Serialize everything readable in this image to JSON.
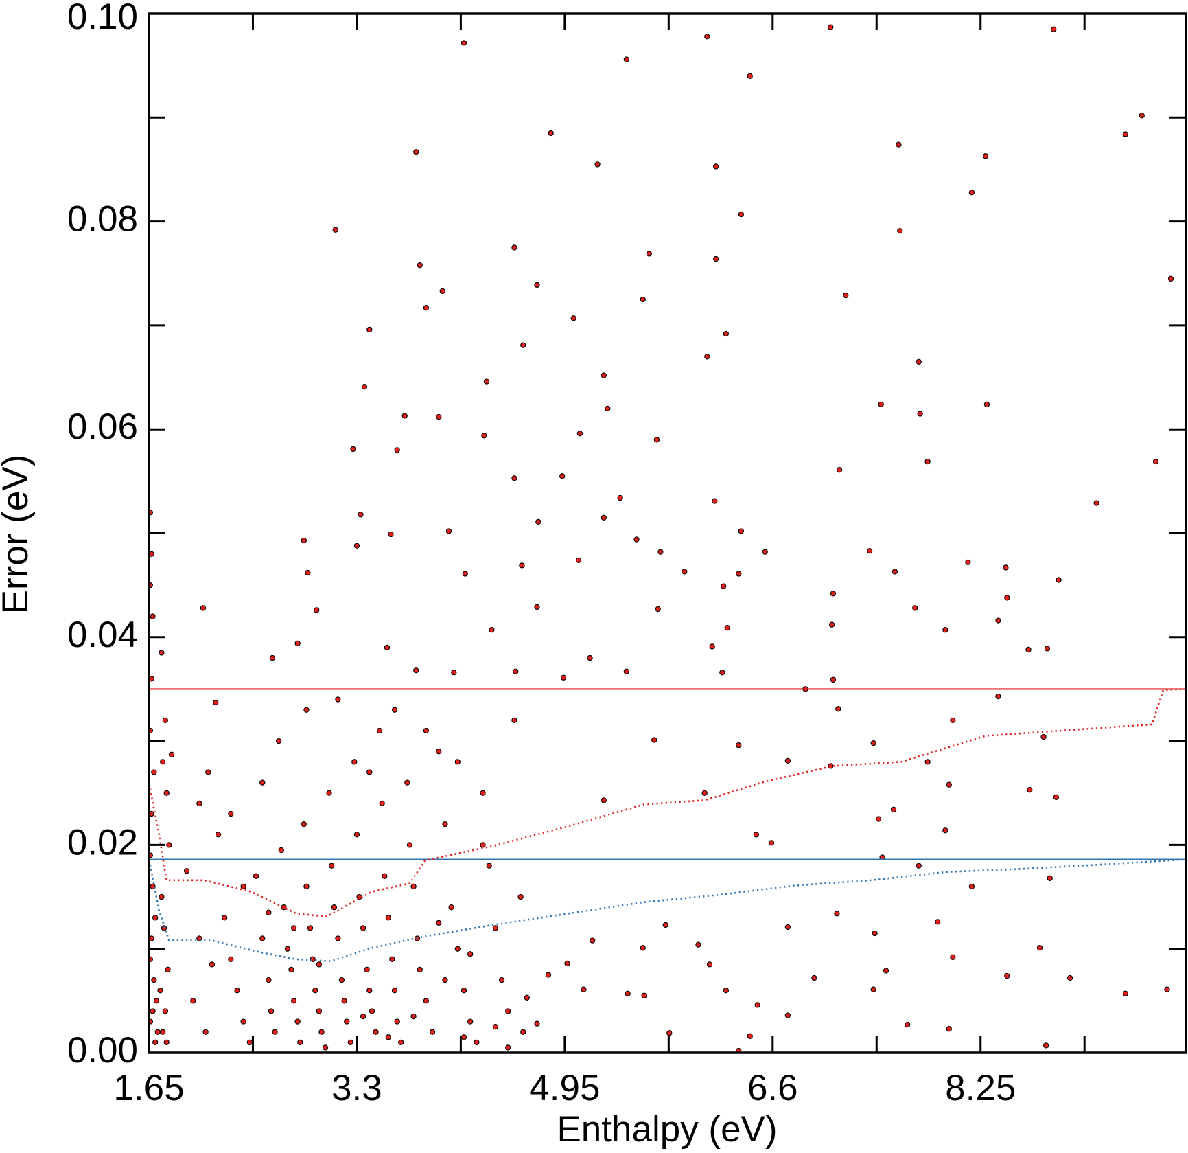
{
  "chart_data": {
    "type": "scatter",
    "xlabel": "Enthalpy (eV)",
    "ylabel": "Error (eV)",
    "xlim": [
      1.65,
      9.88
    ],
    "ylim": [
      0,
      0.1
    ],
    "xticks": [
      1.65,
      3.3,
      4.95,
      6.6,
      8.25
    ],
    "xminorticks": [
      2.475,
      4.125,
      5.775,
      7.425,
      9.075
    ],
    "yticks": [
      {
        "value": 0,
        "label": "0.00"
      },
      {
        "value": 0.02,
        "label": "0.02"
      },
      {
        "value": 0.04,
        "label": "0.04"
      },
      {
        "value": 0.06,
        "label": "0.06"
      },
      {
        "value": 0.08,
        "label": "0.08"
      },
      {
        "value": 0.1,
        "label": "0.10"
      }
    ],
    "yminorticks": [
      0.01,
      0.03,
      0.05,
      0.07,
      0.09
    ],
    "grid": false,
    "series": [
      {
        "type": "scatter",
        "color": "#e0201b",
        "x": [
          4.15,
          6.08,
          7.06,
          8.83,
          5.44,
          6.42,
          9.53,
          9.4,
          4.84,
          3.77,
          7.6,
          8.29,
          5.21,
          6.15,
          8.18,
          6.35,
          3.13,
          7.61,
          4.55,
          5.62,
          6.15,
          3.8,
          9.76,
          4.73,
          7.18,
          3.98,
          5.57,
          3.85,
          5.02,
          3.4,
          6.23,
          4.62,
          6.08,
          7.76,
          4.33,
          3.36,
          5.26,
          7.46,
          8.3,
          5.29,
          3.95,
          3.68,
          5.07,
          4.31,
          5.68,
          7.77,
          7.83,
          9.64,
          3.27,
          3.62,
          4.93,
          4.55,
          7.13,
          5.39,
          6.14,
          9.17,
          3.33,
          5.26,
          4.74,
          6.35,
          4.03,
          3.57,
          2.88,
          5.52,
          7.37,
          5.71,
          6.54,
          3.3,
          5.06,
          8.15,
          8.45,
          4.61,
          2.91,
          5.9,
          7.57,
          6.33,
          8.87,
          4.16,
          6.21,
          2.08,
          7.08,
          8.46,
          2.98,
          4.73,
          5.69,
          7.73,
          8.39,
          7.07,
          4.37,
          6.24,
          7.97,
          1.75,
          2.83,
          3.54,
          8.63,
          8.78,
          5.15,
          6.12,
          2.63,
          4.56,
          7.08,
          5.44,
          4.07,
          3.77,
          4.94,
          6.2,
          6.86,
          7.12,
          8.39,
          2.18,
          7.4,
          8.03,
          6.33,
          8.75,
          1.83,
          5.66,
          6.72,
          7.83,
          7.06,
          8.64,
          8.85,
          8.0,
          6.06,
          5.26,
          7.56,
          7.44,
          7.97,
          6.47,
          6.59,
          7.76,
          7.47,
          8.18,
          8.8,
          7.11,
          7.91,
          6.72,
          7.41,
          8.72,
          8.03,
          7.5,
          8.46,
          8.96,
          7.4,
          9.4,
          9.73,
          6.93,
          6.23,
          6.48,
          6.72,
          7.67,
          8.0,
          8.77,
          5.78,
          5.58,
          5.45,
          6.01,
          6.1,
          5.57,
          5.75,
          5.17,
          4.97,
          5.1,
          4.82,
          4.65,
          4.73,
          6.33,
          6.42,
          1.66,
          1.67,
          1.66,
          1.68,
          1.67,
          1.66,
          1.69,
          1.67,
          1.66,
          1.68,
          1.7,
          1.67,
          1.66,
          1.69,
          1.71,
          1.68,
          1.66,
          1.72,
          1.7,
          1.78,
          1.76,
          1.79,
          1.81,
          1.75,
          1.77,
          1.8,
          1.74,
          1.78,
          1.76,
          1.79,
          2.05,
          2.12,
          2.2,
          2.25,
          2.3,
          2.35,
          2.4,
          2.45,
          2.5,
          2.55,
          2.6,
          2.62,
          2.65,
          2.7,
          2.72,
          2.75,
          2.78,
          2.8,
          2.83,
          2.85,
          2.88,
          2.9,
          2.93,
          2.95,
          2.97,
          3.0,
          3.02,
          3.05,
          3.08,
          3.1,
          3.12,
          3.15,
          3.18,
          3.2,
          3.22,
          3.25,
          3.28,
          3.3,
          3.32,
          3.35,
          3.38,
          3.4,
          3.42,
          3.45,
          3.48,
          3.5,
          3.52,
          3.55,
          3.58,
          3.6,
          3.62,
          3.65,
          3.7,
          3.72,
          3.75,
          3.78,
          3.8,
          3.85,
          3.9,
          3.95,
          4.0,
          4.05,
          4.1,
          4.15,
          4.2,
          4.25,
          4.3,
          4.35,
          4.4,
          4.45,
          4.5,
          4.55,
          4.6,
          4.62,
          2.0,
          2.1,
          2.15,
          2.4,
          2.55,
          2.68,
          2.9,
          3.15,
          3.4,
          3.6,
          3.85,
          4.1,
          4.3,
          1.95,
          2.05,
          2.3,
          2.6,
          2.8,
          3.0,
          3.35,
          3.55,
          3.75,
          4.0,
          4.15,
          4.4,
          4.5,
          4.2,
          3.95
        ],
        "values": [
          0.0972,
          0.0978,
          0.0987,
          0.0985,
          0.0956,
          0.094,
          0.0902,
          0.0884,
          0.0885,
          0.0867,
          0.0874,
          0.0863,
          0.0855,
          0.0853,
          0.0828,
          0.0807,
          0.0792,
          0.0791,
          0.0775,
          0.0769,
          0.0764,
          0.0758,
          0.0745,
          0.0739,
          0.0729,
          0.0733,
          0.0725,
          0.0717,
          0.0707,
          0.0696,
          0.0692,
          0.0681,
          0.067,
          0.0665,
          0.0646,
          0.0641,
          0.0652,
          0.0624,
          0.0624,
          0.062,
          0.0612,
          0.0613,
          0.0596,
          0.0594,
          0.059,
          0.0615,
          0.0569,
          0.0569,
          0.0581,
          0.058,
          0.0555,
          0.0553,
          0.0561,
          0.0534,
          0.0531,
          0.0529,
          0.0518,
          0.0515,
          0.0511,
          0.0502,
          0.0502,
          0.0499,
          0.0493,
          0.0494,
          0.0483,
          0.0482,
          0.0482,
          0.0488,
          0.0474,
          0.0472,
          0.0467,
          0.0469,
          0.0462,
          0.0463,
          0.0463,
          0.0461,
          0.0455,
          0.0461,
          0.0449,
          0.0428,
          0.0442,
          0.0438,
          0.0426,
          0.0429,
          0.0427,
          0.0428,
          0.0416,
          0.0412,
          0.0407,
          0.0409,
          0.0407,
          0.0385,
          0.0394,
          0.039,
          0.0388,
          0.0389,
          0.038,
          0.0391,
          0.038,
          0.0367,
          0.0359,
          0.0367,
          0.0366,
          0.0368,
          0.0361,
          0.0366,
          0.035,
          0.0331,
          0.0343,
          0.0337,
          0.0298,
          0.032,
          0.0296,
          0.0304,
          0.0287,
          0.0301,
          0.0281,
          0.028,
          0.0276,
          0.0253,
          0.0246,
          0.0258,
          0.025,
          0.0243,
          0.0234,
          0.0225,
          0.0214,
          0.021,
          0.0202,
          0.018,
          0.0188,
          0.016,
          0.0168,
          0.0134,
          0.0126,
          0.0121,
          0.0115,
          0.0101,
          0.0092,
          0.0079,
          0.0074,
          0.0072,
          0.0061,
          0.0057,
          0.0061,
          0.0072,
          0.006,
          0.0046,
          0.0036,
          0.0027,
          0.0023,
          0.0007,
          0.0019,
          0.0055,
          0.0057,
          0.0104,
          0.0085,
          0.0101,
          0.0123,
          0.0108,
          0.0086,
          0.0061,
          0.0075,
          0.0053,
          0.0028,
          0.0002,
          0.0016,
          0.052,
          0.048,
          0.045,
          0.042,
          0.036,
          0.031,
          0.027,
          0.023,
          0.019,
          0.016,
          0.013,
          0.011,
          0.009,
          0.007,
          0.005,
          0.004,
          0.003,
          0.002,
          0.001,
          0.032,
          0.028,
          0.025,
          0.02,
          0.015,
          0.012,
          0.008,
          0.006,
          0.004,
          0.002,
          0.001,
          0.024,
          0.027,
          0.021,
          0.013,
          0.009,
          0.006,
          0.003,
          0.001,
          0.017,
          0.011,
          0.007,
          0.004,
          0.002,
          0.0195,
          0.014,
          0.01,
          0.008,
          0.005,
          0.003,
          0.001,
          0.022,
          0.016,
          0.012,
          0.009,
          0.006,
          0.004,
          0.002,
          0.0005,
          0.025,
          0.018,
          0.014,
          0.011,
          0.007,
          0.005,
          0.003,
          0.001,
          0.028,
          0.021,
          0.015,
          0.012,
          0.008,
          0.006,
          0.004,
          0.002,
          0.031,
          0.024,
          0.017,
          0.013,
          0.009,
          0.006,
          0.003,
          0.001,
          0.026,
          0.02,
          0.016,
          0.011,
          0.008,
          0.005,
          0.002,
          0.029,
          0.022,
          0.014,
          0.01,
          0.006,
          0.003,
          0.001,
          0.025,
          0.018,
          0.012,
          0.007,
          0.004,
          0.032,
          0.015,
          0.002,
          0.005,
          0.002,
          0.0085,
          0.016,
          0.026,
          0.03,
          0.033,
          0.034,
          0.027,
          0.033,
          0.031,
          0.028,
          0.02,
          0.0175,
          0.011,
          0.023,
          0.0135,
          0.012,
          0.0085,
          0.0035,
          0.0015,
          0.0035,
          0.007,
          0.0015,
          0.0025,
          0.0005,
          0.0095,
          0.0125
        ]
      },
      {
        "type": "line",
        "style": "solid",
        "color": "#e0201b",
        "x": [
          1.65,
          9.88
        ],
        "values": [
          0.035,
          0.035
        ]
      },
      {
        "type": "line",
        "style": "solid",
        "color": "#2e75b6",
        "x": [
          1.65,
          9.88
        ],
        "values": [
          0.0186,
          0.0186
        ]
      },
      {
        "type": "line",
        "style": "dotted",
        "color": "#e0201b",
        "x": [
          1.66,
          1.73,
          1.79,
          2.09,
          2.46,
          2.82,
          3.06,
          3.42,
          3.72,
          3.84,
          4.38,
          4.98,
          5.58,
          6.06,
          6.54,
          7.08,
          7.62,
          8.29,
          8.89,
          9.61,
          9.7,
          9.88
        ],
        "values": [
          0.0254,
          0.021,
          0.0166,
          0.0166,
          0.0155,
          0.0134,
          0.0131,
          0.0155,
          0.0163,
          0.0185,
          0.0199,
          0.0218,
          0.0239,
          0.0243,
          0.0261,
          0.0276,
          0.028,
          0.0305,
          0.031,
          0.0316,
          0.0349,
          0.035
        ]
      },
      {
        "type": "line",
        "style": "dotted",
        "color": "#2e75b6",
        "x": [
          1.66,
          1.73,
          1.81,
          2.15,
          2.52,
          2.82,
          3.09,
          3.42,
          3.84,
          4.38,
          4.98,
          5.58,
          6.18,
          6.78,
          7.38,
          7.98,
          8.59,
          9.19,
          9.88
        ],
        "values": [
          0.0181,
          0.0137,
          0.0108,
          0.0108,
          0.0097,
          0.009,
          0.0088,
          0.0101,
          0.0112,
          0.0123,
          0.0134,
          0.0145,
          0.0152,
          0.0161,
          0.0166,
          0.0174,
          0.0177,
          0.0181,
          0.0186
        ]
      }
    ]
  }
}
